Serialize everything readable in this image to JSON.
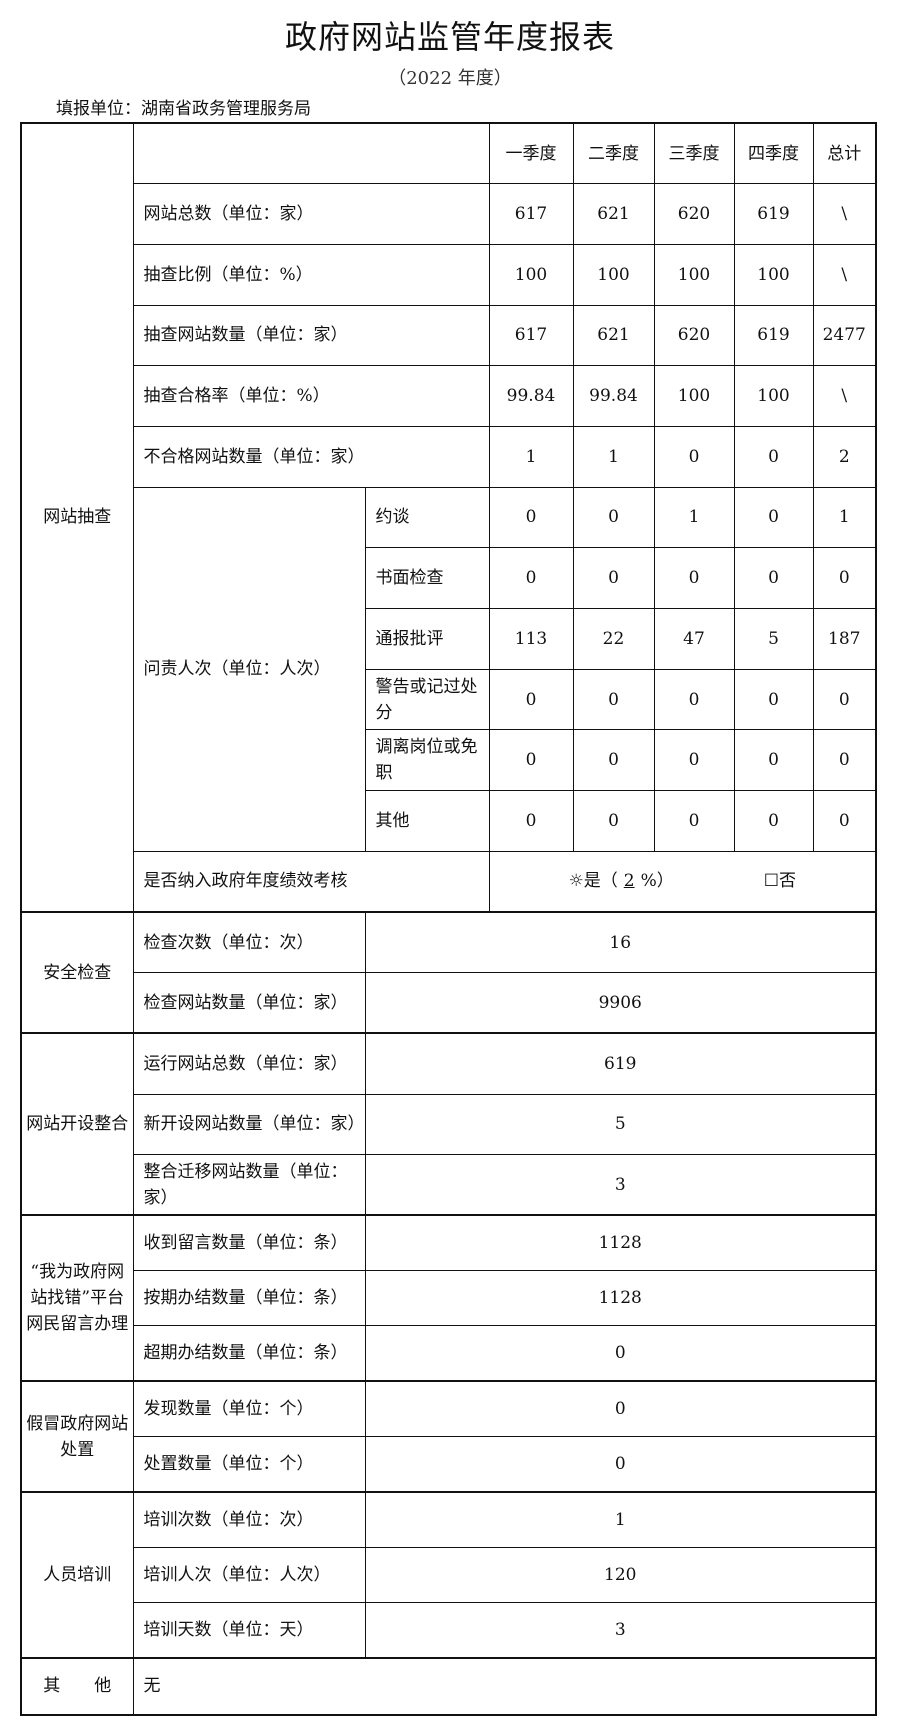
{
  "header": {
    "title": "政府网站监管年度报表",
    "subtitle": "（2022 年度）",
    "unit": "填报单位：湖南省政务管理服务局"
  },
  "columns": [
    "一季度",
    "二季度",
    "三季度",
    "四季度",
    "总计"
  ],
  "spot_check": {
    "section": "网站抽查",
    "rows": [
      {
        "label": "网站总数（单位：家）",
        "values": [
          "617",
          "621",
          "620",
          "619",
          "\\"
        ]
      },
      {
        "label": "抽查比例（单位：%）",
        "values": [
          "100",
          "100",
          "100",
          "100",
          "\\"
        ]
      },
      {
        "label": "抽查网站数量（单位：家）",
        "values": [
          "617",
          "621",
          "620",
          "619",
          "2477"
        ]
      },
      {
        "label": "抽查合格率（单位：%）",
        "values": [
          "99.84",
          "99.84",
          "100",
          "100",
          "\\"
        ]
      },
      {
        "label": "不合格网站数量（单位：家）",
        "values": [
          "1",
          "1",
          "0",
          "0",
          "2"
        ]
      }
    ],
    "accountability": {
      "label": "问责人次（单位：人次）",
      "rows": [
        {
          "label": "约谈",
          "values": [
            "0",
            "0",
            "1",
            "0",
            "1"
          ]
        },
        {
          "label": "书面检查",
          "values": [
            "0",
            "0",
            "0",
            "0",
            "0"
          ]
        },
        {
          "label": "通报批评",
          "values": [
            "113",
            "22",
            "47",
            "5",
            "187"
          ]
        },
        {
          "label": "警告或记过处分",
          "values": [
            "0",
            "0",
            "0",
            "0",
            "0"
          ]
        },
        {
          "label": "调离岗位或免职",
          "values": [
            "0",
            "0",
            "0",
            "0",
            "0"
          ]
        },
        {
          "label": "其他",
          "values": [
            "0",
            "0",
            "0",
            "0",
            "0"
          ]
        }
      ]
    },
    "assessment": {
      "label": "是否纳入政府年度绩效考核",
      "yes_icon": "☼",
      "yes_label": "是（",
      "yes_value": "2",
      "yes_suffix": "%）",
      "no_icon": "☐",
      "no_label": "否",
      "selected": "yes"
    }
  },
  "sections": [
    {
      "name": "安全检查",
      "rows": [
        {
          "label": "检查次数（单位：次）",
          "value": "16"
        },
        {
          "label": "检查网站数量（单位：家）",
          "value": "9906"
        }
      ]
    },
    {
      "name": "网站开设整合",
      "rows": [
        {
          "label": "运行网站总数（单位：家）",
          "value": "619"
        },
        {
          "label": "新开设网站数量（单位：家）",
          "value": "5"
        },
        {
          "label": "整合迁移网站数量（单位：家）",
          "value": "3"
        }
      ]
    },
    {
      "name": "“我为政府网站找错”平台网民留言办理",
      "rows": [
        {
          "label": "收到留言数量（单位：条）",
          "value": "1128"
        },
        {
          "label": "按期办结数量（单位：条）",
          "value": "1128"
        },
        {
          "label": "超期办结数量（单位：条）",
          "value": "0"
        }
      ]
    },
    {
      "name": "假冒政府网站处置",
      "rows": [
        {
          "label": "发现数量（单位：个）",
          "value": "0"
        },
        {
          "label": "处置数量（单位：个）",
          "value": "0"
        }
      ]
    },
    {
      "name": "人员培训",
      "rows": [
        {
          "label": "培训次数（单位：次）",
          "value": "1"
        },
        {
          "label": "培训人次（单位：人次）",
          "value": "120"
        },
        {
          "label": "培训天数（单位：天）",
          "value": "3"
        }
      ]
    }
  ],
  "other": {
    "label": "其　　他",
    "value": "无"
  }
}
